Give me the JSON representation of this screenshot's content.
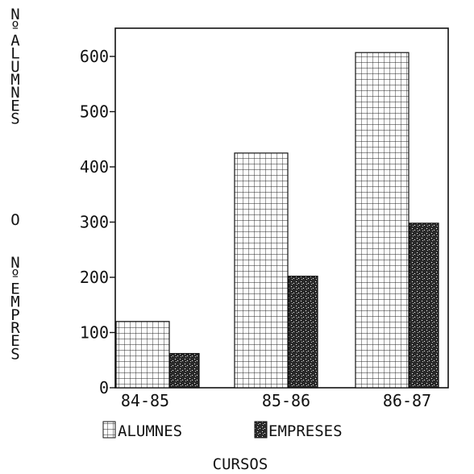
{
  "chart_data": {
    "type": "bar",
    "categories": [
      "84-85",
      "85-86",
      "86-87"
    ],
    "series": [
      {
        "name": "ALUMNES",
        "values": [
          120,
          425,
          607
        ],
        "pattern": "grid"
      },
      {
        "name": "EMPRESES",
        "values": [
          62,
          202,
          298
        ],
        "pattern": "dark"
      }
    ],
    "ylim": [
      0,
      650
    ],
    "yticks": [
      0,
      100,
      200,
      300,
      400,
      500,
      600
    ],
    "ytick_labels": [
      "0",
      "100",
      "200",
      "300",
      "400",
      "500",
      "600"
    ],
    "ylabel_lines": [
      "Nº ALUMNES",
      "O",
      "Nº EMPRES"
    ],
    "xlabel": "CURSOS",
    "grid": false,
    "legend": "bottom",
    "colors": {
      "ink": "#111111",
      "dark_fill": "#2a2a2a"
    }
  }
}
